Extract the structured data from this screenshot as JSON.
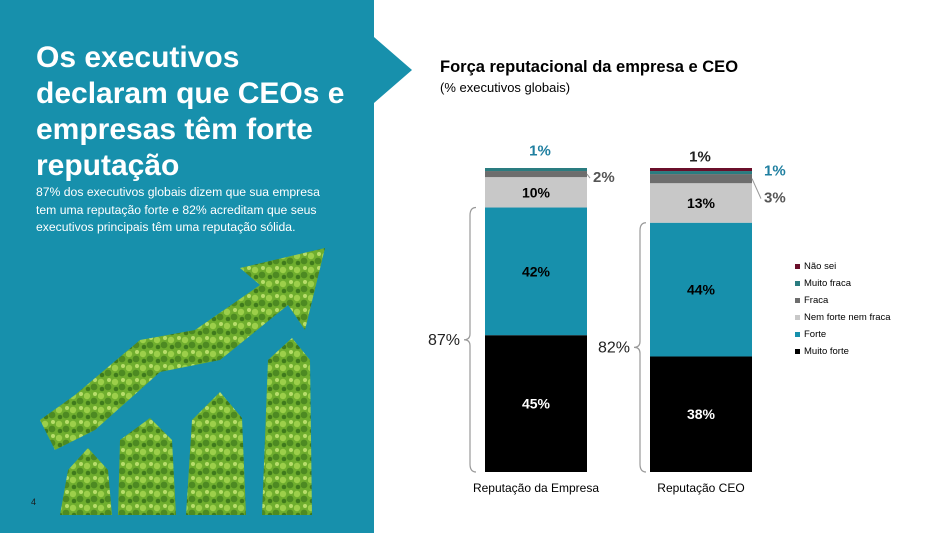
{
  "slide": {
    "headline": "Os executivos declaram que CEOs e empresas têm forte reputação",
    "subtext": "87% dos executivos globais dizem que sua empresa tem uma reputação forte e 82% acreditam que seus executivos principais têm uma reputação sólida.",
    "page_number": "4"
  },
  "colors": {
    "panel": "#1790ac",
    "muito_forte": "#000000",
    "forte": "#1790ac",
    "nem_forte_nem_fraca": "#c8c8c8",
    "fraca": "#6d6d6d",
    "muito_fraca": "#2a7c80",
    "nao_sei": "#6a0f2a"
  },
  "chart_data": {
    "type": "bar",
    "stacked": true,
    "title": "Força reputacional da empresa e CEO",
    "subtitle": "(% executivos globais)",
    "categories": [
      "Reputação da Empresa",
      "Reputação CEO"
    ],
    "series": [
      {
        "name": "Muito forte",
        "values": [
          45,
          38
        ],
        "labels": [
          "45%",
          "38%"
        ],
        "color": "#000000"
      },
      {
        "name": "Forte",
        "values": [
          42,
          44
        ],
        "labels": [
          "42%",
          "44%"
        ],
        "color": "#1790ac"
      },
      {
        "name": "Nem forte nem fraca",
        "values": [
          10,
          13
        ],
        "labels": [
          "10%",
          "13%"
        ],
        "color": "#c8c8c8"
      },
      {
        "name": "Fraca",
        "values": [
          2,
          3
        ],
        "labels": [
          "2%",
          "3%"
        ],
        "color": "#6d6d6d"
      },
      {
        "name": "Muito fraca",
        "values": [
          1,
          1
        ],
        "labels": [
          "1%",
          "1%"
        ],
        "color": "#2a7c80"
      },
      {
        "name": "Não sei",
        "values": [
          0,
          1
        ],
        "labels": [
          "",
          "1%"
        ],
        "color": "#6a0f2a"
      }
    ],
    "legend_order": [
      "Não sei",
      "Muito fraca",
      "Fraca",
      "Nem forte nem fraca",
      "Forte",
      "Muito forte"
    ],
    "legend_position": "right",
    "brackets": [
      {
        "category": "Reputação da Empresa",
        "label": "87%"
      },
      {
        "category": "Reputação CEO",
        "label": "82%"
      }
    ],
    "ylim": [
      0,
      100
    ],
    "grid": false
  }
}
